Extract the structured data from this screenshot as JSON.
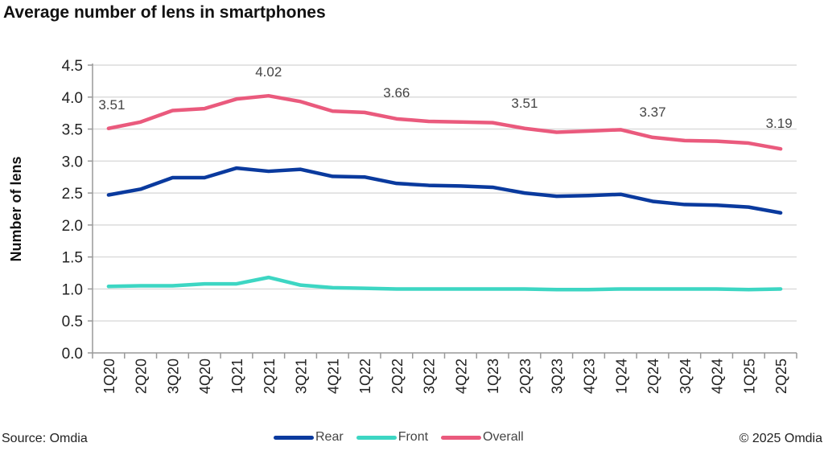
{
  "chart_data": {
    "type": "line",
    "title": "Average number of lens in smartphones",
    "xlabel": "",
    "ylabel": "Number of lens",
    "ylim": [
      0,
      4.5
    ],
    "yticks": [
      "0.0",
      "0.5",
      "1.0",
      "1.5",
      "2.0",
      "2.5",
      "3.0",
      "3.5",
      "4.0",
      "4.5"
    ],
    "grid": true,
    "legend_position": "bottom",
    "categories": [
      "1Q20",
      "2Q20",
      "3Q20",
      "4Q20",
      "1Q21",
      "2Q21",
      "3Q21",
      "4Q21",
      "1Q22",
      "2Q22",
      "3Q22",
      "4Q22",
      "1Q23",
      "2Q23",
      "3Q23",
      "4Q23",
      "1Q24",
      "2Q24",
      "3Q24",
      "4Q24",
      "1Q25",
      "2Q25"
    ],
    "series": [
      {
        "name": "Rear",
        "color": "#0a3a9e",
        "values": [
          2.47,
          2.56,
          2.74,
          2.74,
          2.89,
          2.84,
          2.87,
          2.76,
          2.75,
          2.65,
          2.62,
          2.61,
          2.59,
          2.5,
          2.45,
          2.46,
          2.48,
          2.37,
          2.32,
          2.31,
          2.28,
          2.19
        ]
      },
      {
        "name": "Front",
        "color": "#3dd6c3",
        "values": [
          1.04,
          1.05,
          1.05,
          1.08,
          1.08,
          1.18,
          1.06,
          1.02,
          1.01,
          1.0,
          1.0,
          1.0,
          1.0,
          1.0,
          0.99,
          0.99,
          1.0,
          1.0,
          1.0,
          1.0,
          0.99,
          1.0
        ]
      },
      {
        "name": "Overall",
        "color": "#ea5a7d",
        "values": [
          3.51,
          3.61,
          3.79,
          3.82,
          3.97,
          4.02,
          3.93,
          3.78,
          3.76,
          3.66,
          3.62,
          3.61,
          3.6,
          3.51,
          3.45,
          3.47,
          3.49,
          3.37,
          3.32,
          3.31,
          3.28,
          3.19
        ]
      }
    ],
    "annotations": [
      {
        "series": "Overall",
        "index": 0,
        "text": "3.51"
      },
      {
        "series": "Overall",
        "index": 5,
        "text": "4.02"
      },
      {
        "series": "Overall",
        "index": 9,
        "text": "3.66"
      },
      {
        "series": "Overall",
        "index": 13,
        "text": "3.51"
      },
      {
        "series": "Overall",
        "index": 17,
        "text": "3.37"
      },
      {
        "series": "Overall",
        "index": 21,
        "text": "3.19"
      }
    ]
  },
  "footer": {
    "source": "Source: Omdia",
    "copyright": "© 2025 Omdia"
  }
}
